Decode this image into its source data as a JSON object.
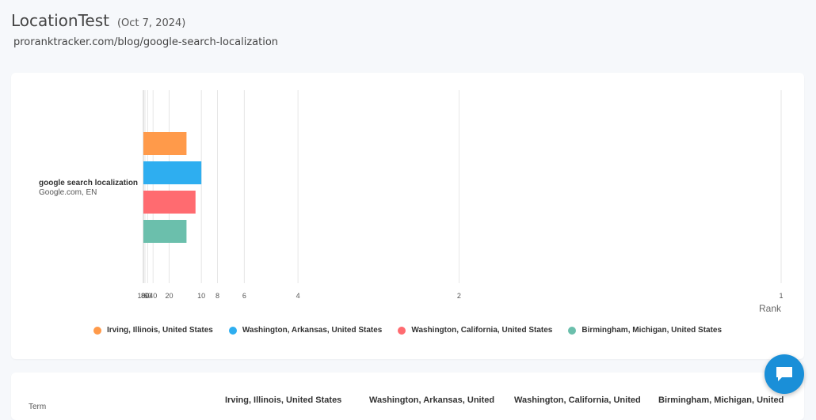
{
  "header": {
    "title": "LocationTest",
    "date": "(Oct 7, 2024)",
    "url": "proranktracker.com/blog/google-search-localization"
  },
  "row": {
    "term": "google search localization",
    "engine": "Google.com, EN"
  },
  "chart_data": {
    "type": "bar",
    "orientation": "horizontal",
    "x_scale": "reciprocal",
    "xlabel": "Rank",
    "xlim": [
      100,
      1
    ],
    "x_ticks": [
      100,
      80,
      60,
      40,
      20,
      10,
      8,
      6,
      4,
      2,
      1
    ],
    "grid": true,
    "legend_position": "bottom",
    "categories": [
      "google search localization"
    ],
    "series": [
      {
        "name": "Irving, Illinois, United States",
        "color": "#ff9a4a",
        "values": [
          13
        ]
      },
      {
        "name": "Washington, Arkansas, United States",
        "color": "#2eaef0",
        "values": [
          10
        ]
      },
      {
        "name": "Washington, California, United States",
        "color": "#ff6b70",
        "values": [
          11
        ]
      },
      {
        "name": "Birmingham, Michigan, United States",
        "color": "#6bbfac",
        "values": [
          13
        ]
      }
    ]
  },
  "table": {
    "term_header": "Term",
    "columns": [
      "Irving, Illinois, United States",
      "Washington, Arkansas, United",
      "Washington, California, United",
      "Birmingham, Michigan, United"
    ]
  },
  "chat": {
    "icon": "chat-icon"
  }
}
